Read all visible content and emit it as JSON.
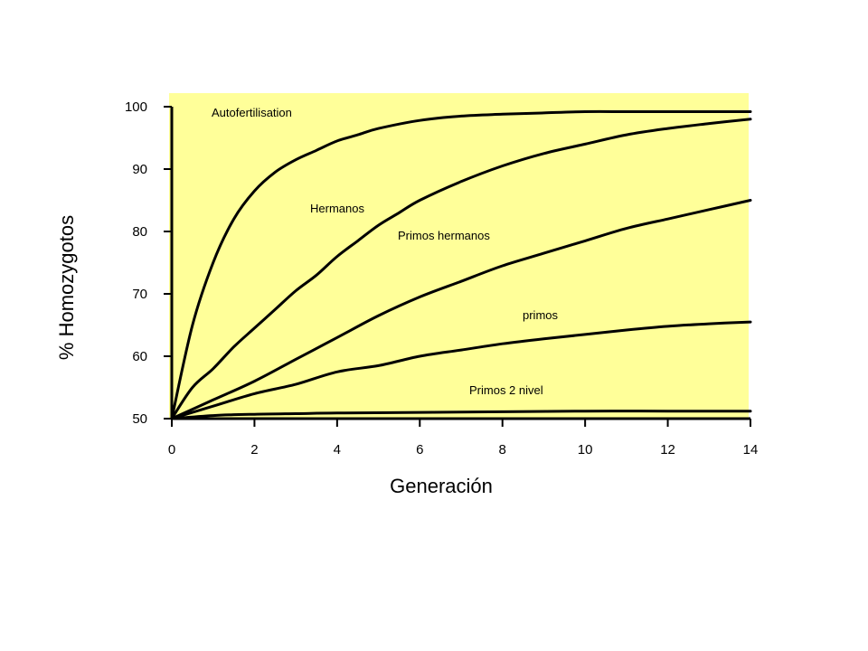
{
  "chart_data": {
    "type": "line",
    "title": "",
    "xlabel": "Generación",
    "ylabel": "% Homozygotos",
    "xlim": [
      0,
      14
    ],
    "ylim": [
      50,
      100
    ],
    "xticks": [
      0,
      2,
      4,
      6,
      8,
      10,
      12,
      14
    ],
    "yticks": [
      50,
      60,
      70,
      80,
      90,
      100
    ],
    "plot_background": "#ffff99",
    "line_color": "#000000",
    "grid": false,
    "legend": "none (labels placed on the plot)",
    "series": [
      {
        "name": "Autofertilisation",
        "x": [
          0,
          0.5,
          1,
          1.5,
          2,
          2.5,
          3,
          3.5,
          4,
          4.5,
          5,
          6,
          7,
          8,
          9,
          10,
          11,
          12,
          13,
          14
        ],
        "y": [
          50,
          65,
          75,
          82,
          86.5,
          89.5,
          91.5,
          93,
          94.5,
          95.5,
          96.5,
          97.8,
          98.5,
          98.8,
          99,
          99.2,
          99.2,
          99.2,
          99.2,
          99.2
        ]
      },
      {
        "name": "Hermanos",
        "x": [
          0,
          0.5,
          1,
          1.5,
          2,
          2.5,
          3,
          3.5,
          4,
          4.5,
          5,
          5.5,
          6,
          7,
          8,
          9,
          10,
          11,
          12,
          13,
          14
        ],
        "y": [
          50,
          55,
          58,
          61.5,
          64.5,
          67.5,
          70.5,
          73,
          76,
          78.5,
          81,
          83,
          85,
          88,
          90.5,
          92.5,
          94,
          95.5,
          96.5,
          97.3,
          98
        ]
      },
      {
        "name": "Primos hermanos",
        "x": [
          0,
          1,
          2,
          3,
          4,
          5,
          6,
          7,
          8,
          9,
          10,
          11,
          12,
          13,
          14
        ],
        "y": [
          50,
          53,
          56,
          59.5,
          63,
          66.5,
          69.5,
          72,
          74.5,
          76.5,
          78.5,
          80.5,
          82,
          83.5,
          85
        ]
      },
      {
        "name": "primos",
        "x": [
          0,
          1,
          2,
          3,
          4,
          5,
          6,
          7,
          8,
          9,
          10,
          11,
          12,
          13,
          14
        ],
        "y": [
          50,
          52,
          54,
          55.5,
          57.5,
          58.5,
          60,
          61,
          62,
          62.8,
          63.5,
          64.2,
          64.8,
          65.2,
          65.5
        ]
      },
      {
        "name": "Primos 2 nivel",
        "x": [
          0,
          1,
          2,
          3,
          4,
          6,
          8,
          10,
          12,
          14
        ],
        "y": [
          50,
          50.5,
          50.7,
          50.8,
          50.9,
          51,
          51.1,
          51.2,
          51.2,
          51.2
        ]
      }
    ]
  }
}
